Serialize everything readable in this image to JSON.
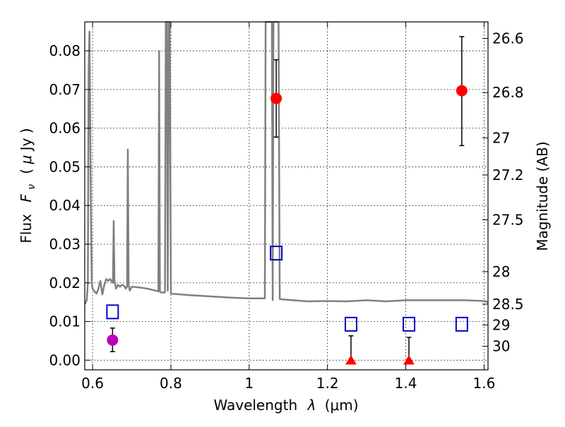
{
  "chart_data": {
    "type": "scatter",
    "title": "",
    "xlabel": "Wavelength  λ (μm)",
    "ylabel": "Flux  F_ν  ( μJy )",
    "ylabel_parts": {
      "word": "Flux",
      "symbol": "F",
      "subscript": "ν",
      "unit_open": "( ",
      "unit_mu": "μ",
      "unit_rest": "Jy )"
    },
    "xlabel_parts": {
      "word": "Wavelength",
      "lambda": "λ",
      "unit": "(μm)"
    },
    "y2label": "Magnitude (AB)",
    "xlim": [
      0.58,
      1.61
    ],
    "ylim": [
      -0.0025,
      0.0875
    ],
    "grid": true,
    "x_ticks": [
      {
        "value": 0.6,
        "label": "0.6"
      },
      {
        "value": 0.8,
        "label": "0.8"
      },
      {
        "value": 1.0,
        "label": "1"
      },
      {
        "value": 1.2,
        "label": "1.2"
      },
      {
        "value": 1.4,
        "label": "1.4"
      },
      {
        "value": 1.6,
        "label": "1.6"
      }
    ],
    "y_ticks": [
      {
        "value": 0.0,
        "label": "0.00"
      },
      {
        "value": 0.01,
        "label": "0.01"
      },
      {
        "value": 0.02,
        "label": "0.02"
      },
      {
        "value": 0.03,
        "label": "0.03"
      },
      {
        "value": 0.04,
        "label": "0.04"
      },
      {
        "value": 0.05,
        "label": "0.05"
      },
      {
        "value": 0.06,
        "label": "0.06"
      },
      {
        "value": 0.07,
        "label": "0.07"
      },
      {
        "value": 0.08,
        "label": "0.08"
      }
    ],
    "y2_ticks": [
      {
        "label": "26.6",
        "flux": 0.0832
      },
      {
        "label": "26.8",
        "flux": 0.0692
      },
      {
        "label": "27",
        "flux": 0.0575
      },
      {
        "label": "27.2",
        "flux": 0.0479
      },
      {
        "label": "27.5",
        "flux": 0.0363
      },
      {
        "label": "28",
        "flux": 0.0229
      },
      {
        "label": "28.5",
        "flux": 0.0145
      },
      {
        "label": "29",
        "flux": 0.0091
      },
      {
        "label": "30",
        "flux": 0.0036
      }
    ],
    "series": [
      {
        "kind": "line",
        "color": "#808080",
        "points": [
          [
            0.58,
            0.0145
          ],
          [
            0.585,
            0.0155
          ],
          [
            0.588,
            0.02
          ],
          [
            0.59,
            0.075
          ],
          [
            0.592,
            0.085
          ],
          [
            0.594,
            0.06
          ],
          [
            0.596,
            0.035
          ],
          [
            0.598,
            0.02
          ],
          [
            0.6,
            0.0185
          ],
          [
            0.605,
            0.0178
          ],
          [
            0.61,
            0.0172
          ],
          [
            0.615,
            0.0185
          ],
          [
            0.62,
            0.0205
          ],
          [
            0.625,
            0.017
          ],
          [
            0.63,
            0.0195
          ],
          [
            0.635,
            0.021
          ],
          [
            0.64,
            0.0205
          ],
          [
            0.645,
            0.021
          ],
          [
            0.648,
            0.0205
          ],
          [
            0.65,
            0.0202
          ],
          [
            0.652,
            0.02
          ],
          [
            0.654,
            0.036
          ],
          [
            0.656,
            0.0205
          ],
          [
            0.66,
            0.0185
          ],
          [
            0.665,
            0.0195
          ],
          [
            0.67,
            0.019
          ],
          [
            0.675,
            0.0195
          ],
          [
            0.68,
            0.0193
          ],
          [
            0.685,
            0.0185
          ],
          [
            0.688,
            0.019
          ],
          [
            0.69,
            0.0545
          ],
          [
            0.692,
            0.0195
          ],
          [
            0.695,
            0.018
          ],
          [
            0.7,
            0.019
          ],
          [
            0.72,
            0.0188
          ],
          [
            0.74,
            0.0185
          ],
          [
            0.76,
            0.018
          ],
          [
            0.768,
            0.0178
          ],
          [
            0.77,
            0.08
          ],
          [
            0.772,
            0.0178
          ],
          [
            0.775,
            0.0175
          ],
          [
            0.78,
            0.0175
          ],
          [
            0.785,
            0.0175
          ],
          [
            0.787,
            0.09
          ],
          [
            0.79,
            0.09
          ],
          [
            0.792,
            0.018
          ],
          [
            0.795,
            0.09
          ],
          [
            0.797,
            0.09
          ],
          [
            0.8,
            0.0172
          ],
          [
            0.85,
            0.0168
          ],
          [
            0.9,
            0.0165
          ],
          [
            0.95,
            0.0162
          ],
          [
            1.0,
            0.016
          ],
          [
            1.02,
            0.016
          ],
          [
            1.03,
            0.016
          ],
          [
            1.04,
            0.016
          ],
          [
            1.042,
            0.09
          ],
          [
            1.058,
            0.09
          ],
          [
            1.06,
            0.0155
          ],
          [
            1.062,
            0.09
          ],
          [
            1.075,
            0.09
          ],
          [
            1.078,
            0.0158
          ],
          [
            1.1,
            0.0156
          ],
          [
            1.15,
            0.0152
          ],
          [
            1.2,
            0.0153
          ],
          [
            1.25,
            0.0152
          ],
          [
            1.3,
            0.0155
          ],
          [
            1.35,
            0.0152
          ],
          [
            1.4,
            0.0155
          ],
          [
            1.45,
            0.0155
          ],
          [
            1.5,
            0.0155
          ],
          [
            1.55,
            0.0155
          ],
          [
            1.6,
            0.0153
          ],
          [
            1.61,
            0.015
          ]
        ]
      },
      {
        "kind": "squares",
        "color": "#0000cc",
        "points": [
          [
            0.651,
            0.0125
          ],
          [
            1.069,
            0.0277
          ],
          [
            1.26,
            0.0093
          ],
          [
            1.408,
            0.0093
          ],
          [
            1.543,
            0.0093
          ]
        ]
      },
      {
        "kind": "errorbar",
        "color": "#ff0000",
        "points": [
          {
            "x": 1.069,
            "y": 0.0677,
            "lo": 0.0577,
            "hi": 0.0777
          },
          {
            "x": 1.543,
            "y": 0.0697,
            "lo": 0.0555,
            "hi": 0.0837
          }
        ]
      },
      {
        "kind": "errorbar",
        "color": "#bb00bb",
        "points": [
          {
            "x": 0.651,
            "y": 0.0052,
            "lo": 0.0022,
            "hi": 0.0083
          }
        ]
      },
      {
        "kind": "upper-limits",
        "color": "#ff0000",
        "points": [
          {
            "x": 1.26,
            "y": -0.0003,
            "hi": 0.0063
          },
          {
            "x": 1.408,
            "y": -0.0003,
            "hi": 0.0059
          }
        ]
      }
    ]
  }
}
